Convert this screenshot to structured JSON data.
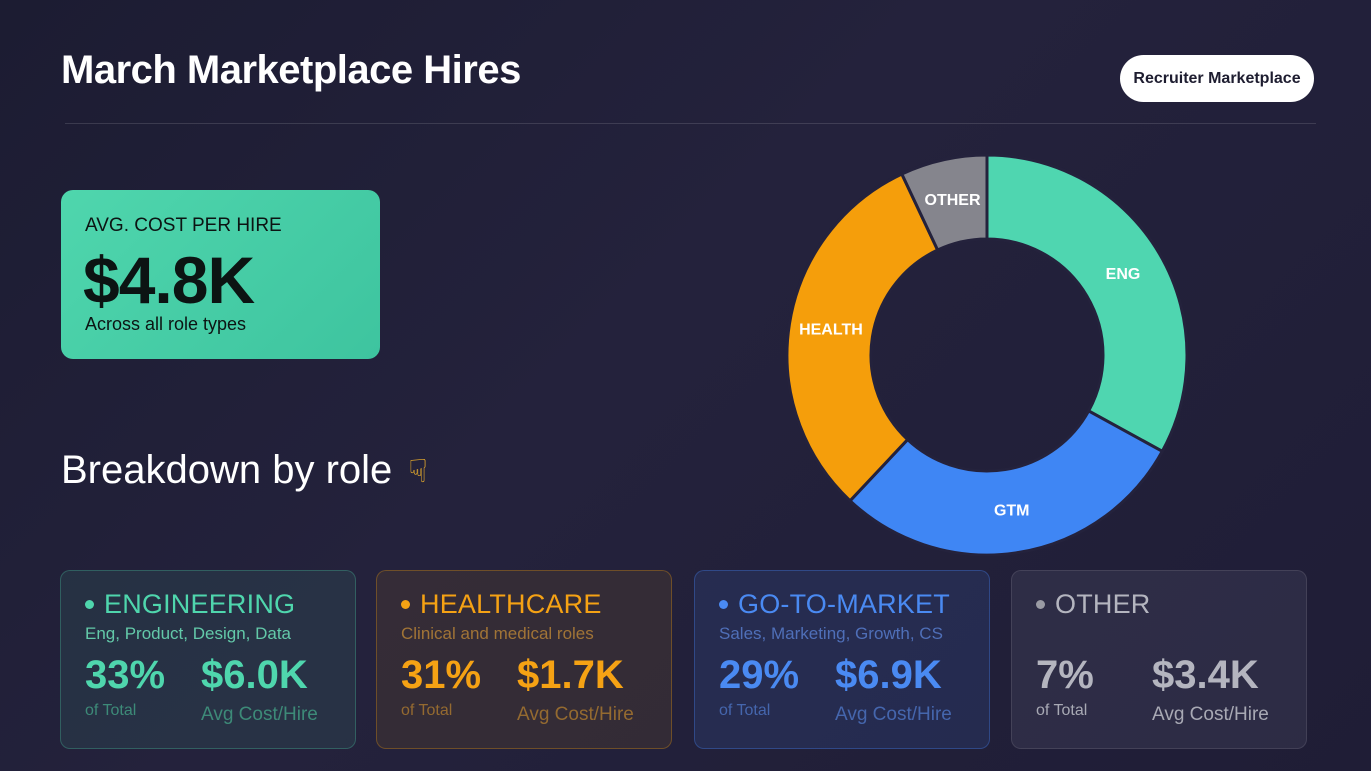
{
  "header": {
    "title": "March Marketplace Hires",
    "pill_label": "Recruiter Marketplace"
  },
  "kpi": {
    "label": "AVG. COST PER HIRE",
    "value": "$4.8K",
    "sub": "Across all role types"
  },
  "breakdown": {
    "title": "Breakdown by role",
    "icon": "pointing-down-hand-icon"
  },
  "chart_data": {
    "type": "pie",
    "categories": [
      "ENG",
      "GTM",
      "HEALTH",
      "OTHER"
    ],
    "values": [
      33,
      29,
      31,
      7
    ],
    "colors": [
      "#4fd6b0",
      "#3f86f4",
      "#f59e0b",
      "#85858d"
    ],
    "title": ""
  },
  "cards": [
    {
      "name": "ENGINEERING",
      "desc": "Eng, Product, Design, Data",
      "pct": "33%",
      "pct_label": "of Total",
      "cost": "$6.0K",
      "cost_label": "Avg Cost/Hire"
    },
    {
      "name": "HEALTHCARE",
      "desc": "Clinical and medical roles",
      "pct": "31%",
      "pct_label": "of Total",
      "cost": "$1.7K",
      "cost_label": "Avg Cost/Hire"
    },
    {
      "name": "GO-TO-MARKET",
      "desc": "Sales, Marketing, Growth, CS",
      "pct": "29%",
      "pct_label": "of Total",
      "cost": "$6.9K",
      "cost_label": "Avg Cost/Hire"
    },
    {
      "name": "OTHER",
      "desc": "",
      "pct": "7%",
      "pct_label": "of Total",
      "cost": "$3.4K",
      "cost_label": "Avg Cost/Hire"
    }
  ]
}
